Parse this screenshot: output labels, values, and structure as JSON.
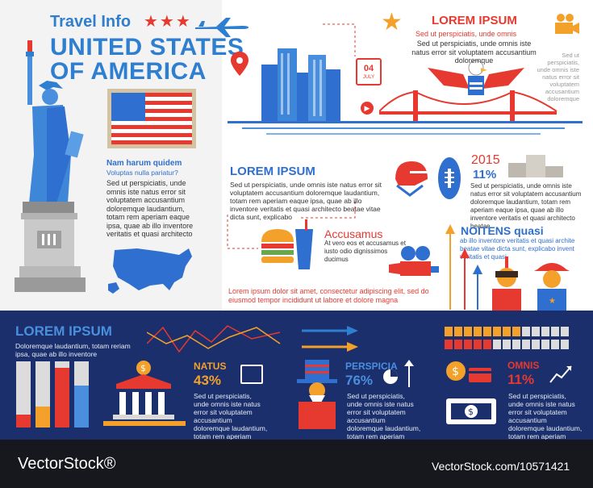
{
  "header": {
    "travel_info": "Travel Info",
    "stars": "★★★",
    "title_line1": "UNITED STATES",
    "title_line2": "OF AMERICA"
  },
  "left_info": {
    "heading": "Nam harum quidem",
    "sub": "Voluptas nulla pariatur?",
    "body": "Sed ut perspiciatis, unde omnis iste natus error sit voluptatem accusantium doloremque laudantium, totam rem aperiam eaque ipsa, quae ab illo inventore veritatis et quasi architecto"
  },
  "top_right": {
    "heading": "LOREM IPSUM",
    "sub": "Sed ut perspiciatis, unde omnis",
    "body": "Sed ut perspiciatis, unde omnis iste natus error sit voluptatem accusantium doloremque",
    "side": "Sed ut perspiciatis, unde omnis iste natus error sit voluptatem accusantium doloremque"
  },
  "calendar": {
    "day": "04",
    "month": "JULY"
  },
  "mid_left": {
    "heading": "LOREM IPSUM",
    "body": "Sed ut perspiciatis, unde omnis iste natus error sit voluptatem accusantium doloremque laudantium, totam rem aperiam eaque ipsa, quae ab illo inventore veritatis et quasi architecto beatae vitae dicta sunt, explicabo"
  },
  "year_block": {
    "year": "2015",
    "percent": "11%",
    "body": "Sed ut perspiciatis, unde omnis iste natus error sit voluptatem accusantium doloremque laudantium, totam rem aperiam eaque ipsa, quae ab illo inventore veritatis et quasi architecto beatae"
  },
  "accusamus": {
    "heading": "Accusamus",
    "body": "At vero eos et accusamus et iusto odio dignissimos ducimus"
  },
  "noitens": {
    "heading": "NOITENS quasi",
    "body": "ab illo inventore veritatis et quasi archite beatae vitae dicta sunt, explicabo invent veritatis et quasi"
  },
  "red_line": "Lorem ipsum dolor sit amet, consectetur adipiscing elit, sed do eiusmod tempor incididunt ut labore et dolore magna",
  "bottom": {
    "heading": "LOREM IPSUM",
    "sub": "Doloremque laudantium, totam reriam ipsa, quae ab illo inventore",
    "natus_label": "NATUS",
    "natus_pct": "43%",
    "natus_body": "Sed ut perspiciatis, unde omnis iste natus error sit voluptatem accusantium doloremque laudantium, totam rem aperiam eaque",
    "perspicia_label": "PERSPICIA",
    "perspicia_pct": "76%",
    "perspicia_body": "Sed ut perspiciatis, unde omnis iste natus error sit voluptatem accusantium doloremque laudantium, totam rem aperiam eaque",
    "omnis_label": "OMNIS",
    "omnis_pct": "11%",
    "omnis_body": "Sed ut perspiciatis, unde omnis iste natus error sit voluptatem accusantium doloremque laudantium, totam rem aperiam eaque"
  },
  "footer": {
    "logo": "VectorStock®",
    "url": "VectorStock.com/10571421"
  },
  "colors": {
    "blue": "#2f7fd0",
    "red": "#e6392f",
    "navy": "#1a2f6b",
    "footer_bg": "#16181d"
  }
}
